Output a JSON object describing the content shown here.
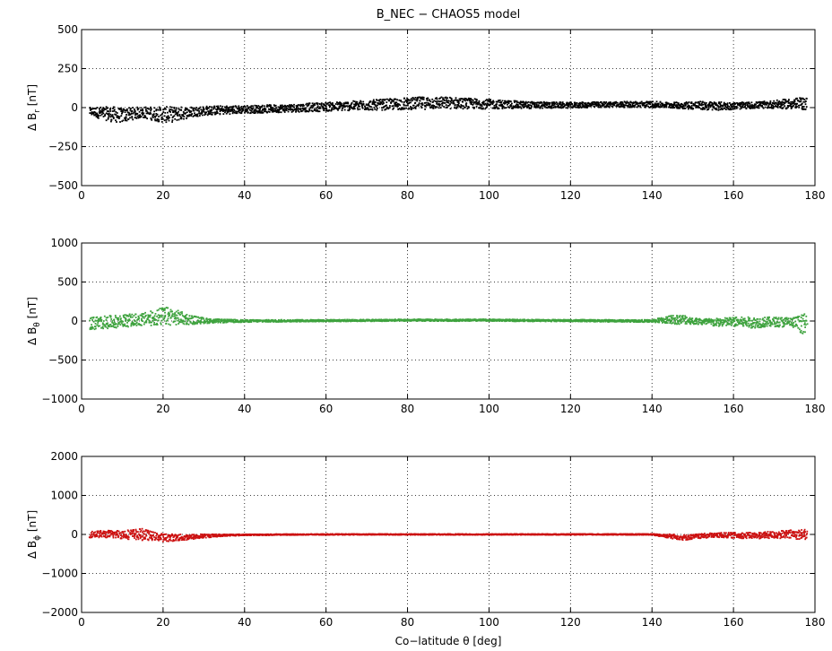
{
  "chart_data": [
    {
      "type": "scatter",
      "title": "B_NEC − CHAOS5 model",
      "ylabel": {
        "prefix": "Δ B",
        "sub": "r",
        "unit": " [nT]"
      },
      "xlabel": "",
      "xlim": [
        0,
        180
      ],
      "ylim": [
        -500,
        500
      ],
      "xticks": [
        0,
        20,
        40,
        60,
        80,
        100,
        120,
        140,
        160,
        180
      ],
      "yticks": [
        -500,
        -250,
        0,
        250,
        500
      ],
      "ytick_labels": [
        "−500",
        "−250",
        "0",
        "250",
        "500"
      ],
      "grid": true,
      "color": "#000000",
      "band": {
        "x": [
          2,
          5,
          8,
          10,
          12,
          15,
          18,
          20,
          22,
          25,
          28,
          30,
          40,
          50,
          60,
          70,
          80,
          85,
          90,
          100,
          110,
          120,
          130,
          140,
          145,
          150,
          155,
          160,
          165,
          170,
          175,
          178
        ],
        "center": [
          -25,
          -35,
          -45,
          -50,
          -40,
          -30,
          -40,
          -45,
          -45,
          -35,
          -25,
          -20,
          -12,
          -5,
          5,
          15,
          25,
          30,
          30,
          22,
          16,
          15,
          20,
          20,
          15,
          15,
          10,
          10,
          15,
          20,
          25,
          25
        ],
        "half": [
          25,
          40,
          50,
          45,
          40,
          35,
          45,
          50,
          50,
          40,
          32,
          30,
          25,
          25,
          28,
          32,
          38,
          40,
          38,
          30,
          22,
          18,
          18,
          20,
          18,
          25,
          28,
          22,
          20,
          25,
          35,
          40
        ]
      }
    },
    {
      "type": "scatter",
      "ylabel": {
        "prefix": "Δ B",
        "sub": "θ",
        "unit": " [nT]"
      },
      "xlabel": "",
      "xlim": [
        0,
        180
      ],
      "ylim": [
        -1000,
        1000
      ],
      "xticks": [
        0,
        20,
        40,
        60,
        80,
        100,
        120,
        140,
        160,
        180
      ],
      "yticks": [
        -1000,
        -500,
        0,
        500,
        1000
      ],
      "ytick_labels": [
        "−1000",
        "−500",
        "0",
        "500",
        "1000"
      ],
      "grid": true,
      "color": "#3fa33f",
      "band": {
        "x": [
          2,
          5,
          10,
          15,
          18,
          20,
          22,
          25,
          28,
          32,
          40,
          60,
          80,
          100,
          120,
          140,
          145,
          148,
          150,
          155,
          160,
          165,
          170,
          175,
          178
        ],
        "center": [
          -30,
          -20,
          0,
          20,
          40,
          60,
          60,
          30,
          10,
          0,
          0,
          5,
          10,
          10,
          5,
          0,
          20,
          20,
          0,
          -20,
          -10,
          -20,
          -10,
          -20,
          -50
        ],
        "half": [
          90,
          80,
          80,
          80,
          100,
          120,
          110,
          80,
          50,
          25,
          15,
          12,
          12,
          12,
          12,
          15,
          60,
          60,
          40,
          50,
          60,
          70,
          60,
          70,
          150
        ]
      }
    },
    {
      "type": "scatter",
      "ylabel": {
        "prefix": "Δ B",
        "sub": "ϕ",
        "unit": " [nT]"
      },
      "xlabel": "Co−latitude θ [deg]",
      "xlim": [
        0,
        180
      ],
      "ylim": [
        -2000,
        2000
      ],
      "xticks": [
        0,
        20,
        40,
        60,
        80,
        100,
        120,
        140,
        160,
        180
      ],
      "yticks": [
        -2000,
        -1000,
        0,
        1000,
        2000
      ],
      "ytick_labels": [
        "−2000",
        "−1000",
        "0",
        "1000",
        "2000"
      ],
      "grid": true,
      "color": "#cc1111",
      "band": {
        "x": [
          2,
          5,
          10,
          15,
          18,
          20,
          25,
          30,
          35,
          40,
          60,
          80,
          100,
          120,
          140,
          145,
          148,
          150,
          155,
          160,
          165,
          170,
          175,
          178
        ],
        "center": [
          0,
          10,
          0,
          0,
          -50,
          -80,
          -80,
          -40,
          -20,
          -10,
          0,
          0,
          0,
          0,
          0,
          -50,
          -80,
          -60,
          -20,
          -20,
          -30,
          -10,
          0,
          0
        ],
        "half": [
          80,
          90,
          110,
          150,
          100,
          100,
          80,
          50,
          25,
          15,
          12,
          12,
          12,
          12,
          15,
          60,
          70,
          60,
          60,
          70,
          80,
          90,
          120,
          130
        ]
      }
    }
  ]
}
